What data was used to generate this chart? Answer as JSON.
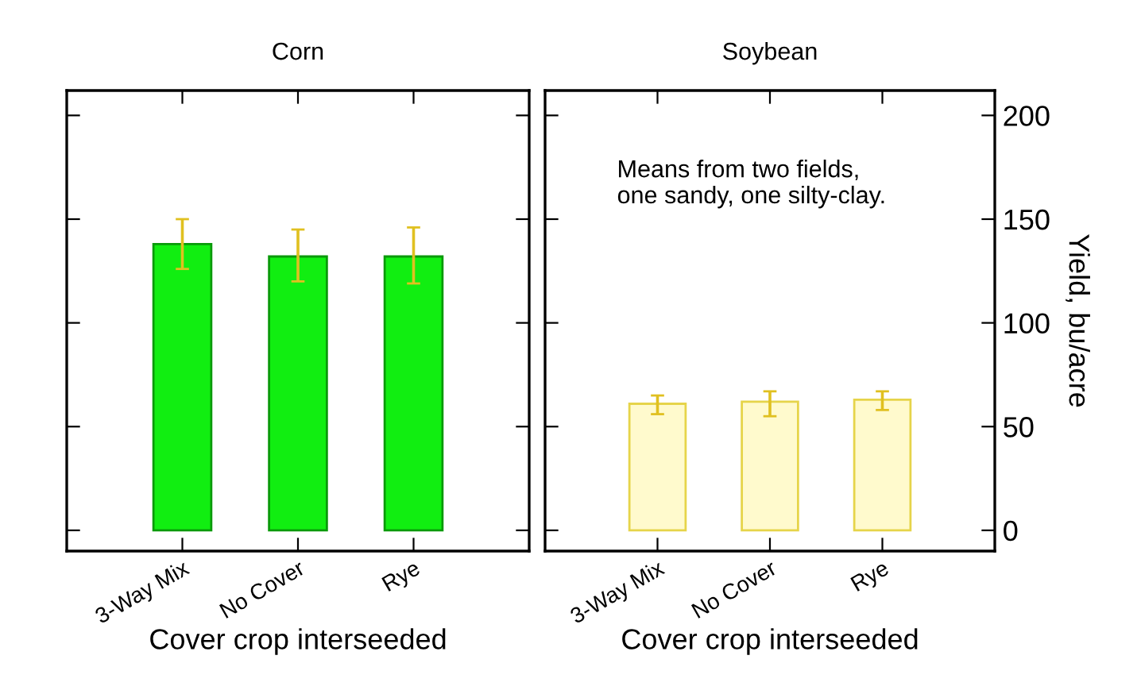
{
  "chart_data": [
    {
      "type": "bar",
      "title": "Corn",
      "xlabel": "Cover crop interseeded",
      "categories": [
        "3-Way Mix",
        "No Cover",
        "Rye"
      ],
      "series": [
        {
          "color": "#11ee11",
          "values": [
            138,
            132,
            132
          ],
          "errors": [
            [
              126,
              150
            ],
            [
              120,
              145
            ],
            [
              119,
              146
            ]
          ]
        }
      ],
      "ylim": [
        -10,
        212
      ],
      "yticks": [
        0,
        50,
        100,
        150,
        200
      ],
      "tick_labels": "x",
      "grid": false
    },
    {
      "type": "bar",
      "title": "Soybean",
      "xlabel": "Cover crop interseeded",
      "ylabel": "Yield, bu/acre",
      "categories": [
        "3-Way Mix",
        "No Cover",
        "Rye"
      ],
      "series": [
        {
          "color": "#fffacd",
          "values": [
            61,
            62,
            63
          ],
          "errors": [
            [
              56,
              65
            ],
            [
              55,
              67
            ],
            [
              58,
              67
            ]
          ]
        }
      ],
      "ylim": [
        -10,
        212
      ],
      "yticks": [
        0,
        50,
        100,
        150,
        200
      ],
      "grid": false,
      "annotations": [
        "Means from two fields,\none sandy, one silty-clay."
      ]
    }
  ]
}
